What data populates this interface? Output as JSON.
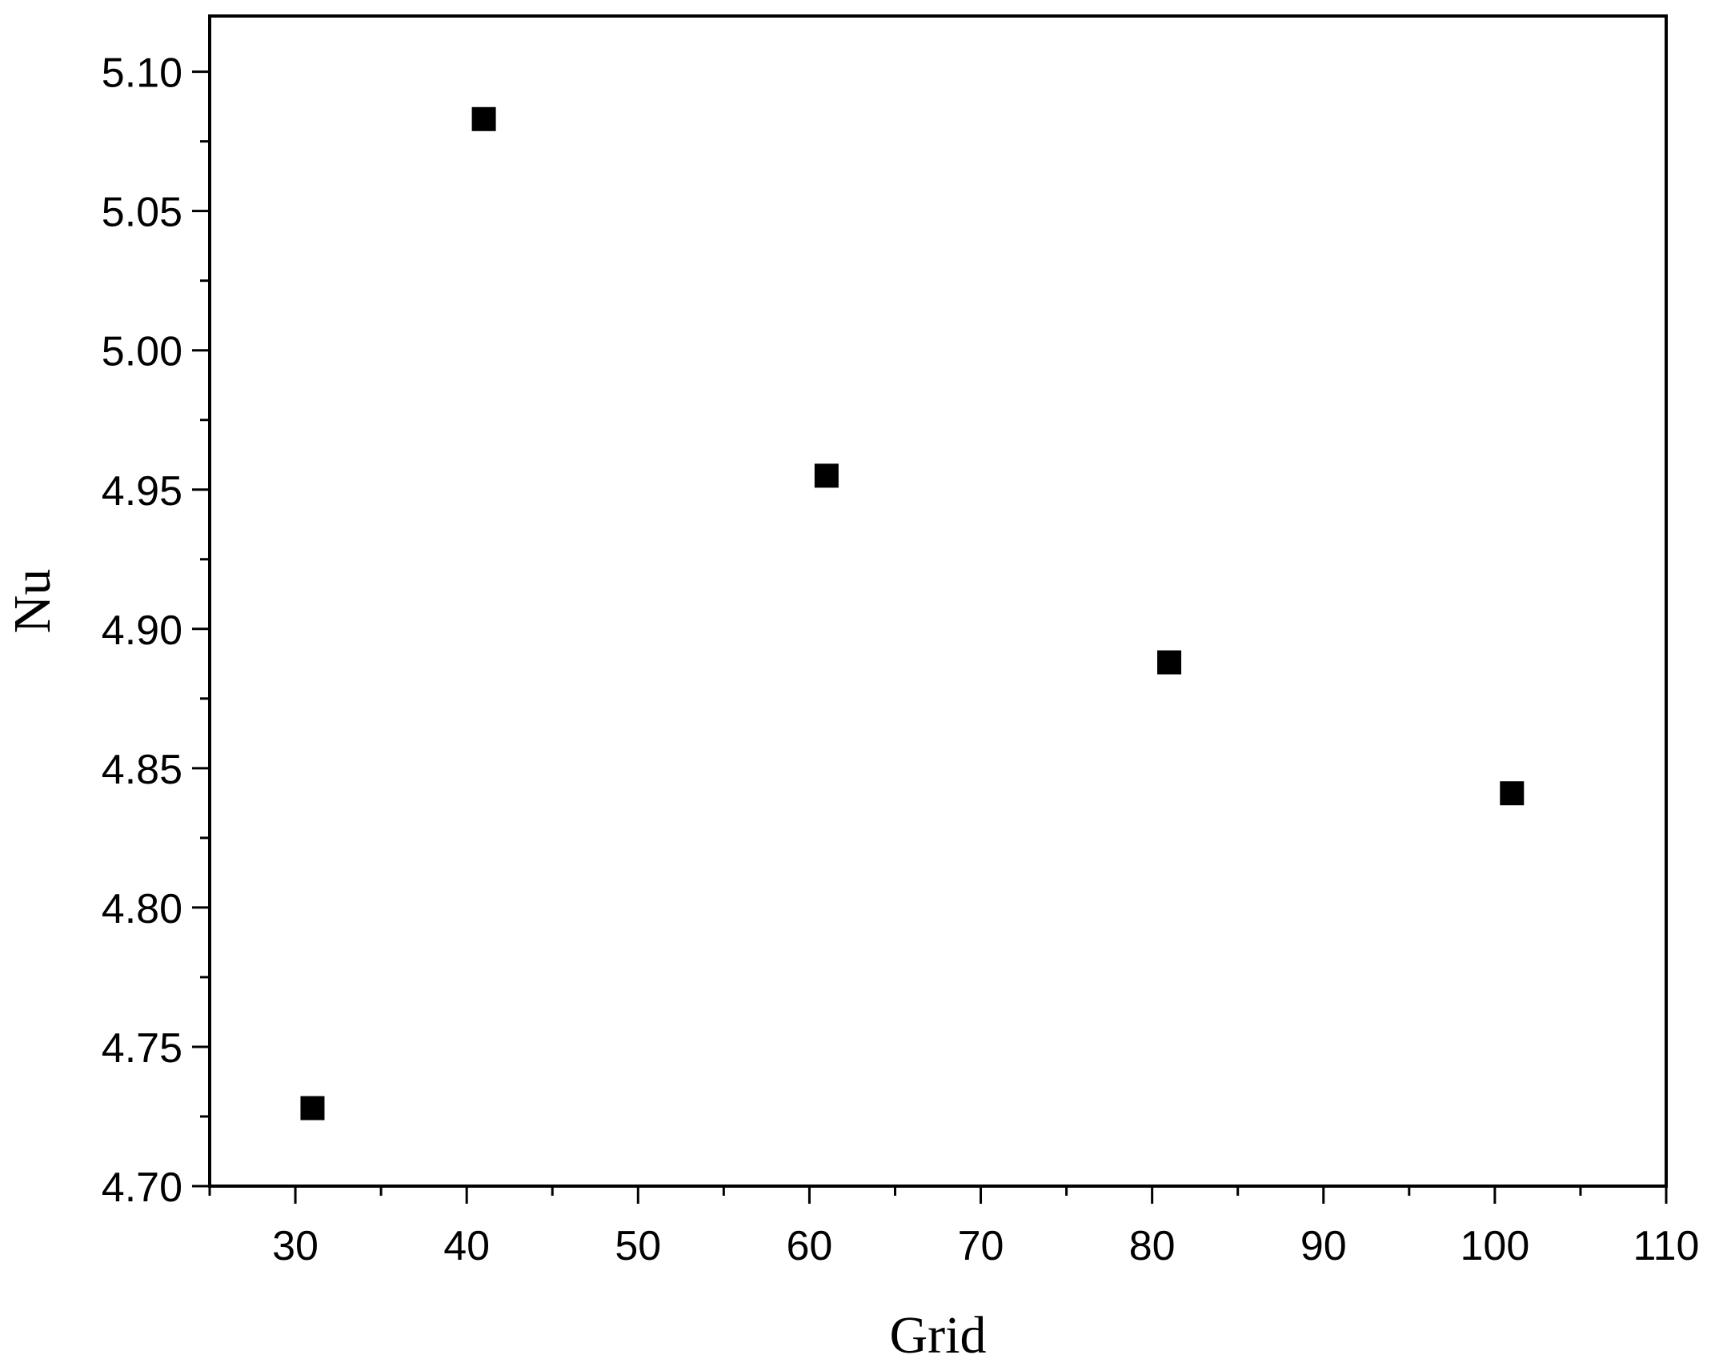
{
  "chart_data": {
    "type": "scatter",
    "title": "",
    "xlabel": "Grid",
    "ylabel": "Nu",
    "xlim": [
      25,
      110
    ],
    "ylim": [
      4.7,
      5.12
    ],
    "x_ticks": [
      "30",
      "40",
      "50",
      "60",
      "70",
      "80",
      "90",
      "100",
      "110"
    ],
    "y_ticks": [
      "4.70",
      "4.75",
      "4.80",
      "4.85",
      "4.90",
      "4.95",
      "5.00",
      "5.05",
      "5.10"
    ],
    "grid": false,
    "legend": "none",
    "marker": "square",
    "series": [
      {
        "x": [
          31,
          41,
          61,
          81,
          101
        ],
        "y": [
          4.728,
          5.083,
          4.955,
          4.888,
          4.841
        ]
      }
    ]
  },
  "colors": {
    "marker": "#000000",
    "axis": "#000000",
    "background": "#ffffff"
  }
}
